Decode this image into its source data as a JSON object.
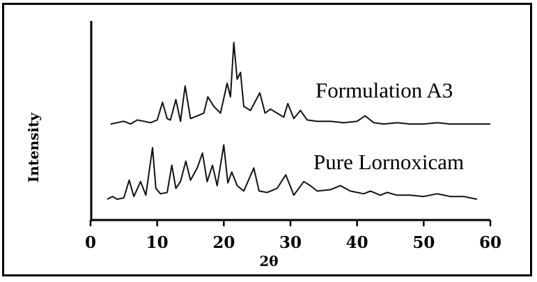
{
  "chart_data": {
    "type": "line",
    "title": "",
    "xlabel": "2θ",
    "ylabel": "Intensity",
    "xlim": [
      0,
      60
    ],
    "xticks": [
      "0",
      "10",
      "20",
      "30",
      "40",
      "50",
      "60"
    ],
    "grid": false,
    "legend": "inline labels above each trace",
    "series": [
      {
        "name": "Formulation A3",
        "x": [
          3,
          4,
          5,
          6,
          7,
          8,
          9,
          10,
          10.8,
          11.5,
          12,
          12.8,
          13.5,
          14.2,
          15,
          16,
          17,
          17.6,
          18.5,
          19.5,
          20.5,
          21,
          21.5,
          22,
          22.5,
          23,
          24,
          25.4,
          26.2,
          27,
          28,
          29,
          29.6,
          30.5,
          31.5,
          32.5,
          34,
          36,
          38,
          40,
          41.2,
          42.5,
          44,
          46,
          48,
          50,
          52,
          54,
          56,
          58,
          60
        ],
        "y": [
          0.02,
          0.03,
          0.04,
          0.02,
          0.05,
          0.04,
          0.03,
          0.05,
          0.18,
          0.06,
          0.05,
          0.2,
          0.04,
          0.3,
          0.06,
          0.08,
          0.1,
          0.22,
          0.15,
          0.1,
          0.32,
          0.22,
          0.62,
          0.35,
          0.4,
          0.15,
          0.12,
          0.25,
          0.1,
          0.13,
          0.1,
          0.07,
          0.17,
          0.06,
          0.12,
          0.05,
          0.04,
          0.04,
          0.03,
          0.04,
          0.08,
          0.03,
          0.02,
          0.03,
          0.02,
          0.02,
          0.03,
          0.02,
          0.02,
          0.02,
          0.02
        ]
      },
      {
        "name": "Pure Lornoxicam",
        "x": [
          2.5,
          3.3,
          4,
          5,
          5.8,
          6.5,
          7.5,
          8.3,
          9.3,
          9.8,
          10.5,
          11.5,
          12.2,
          12.8,
          13.5,
          14.3,
          15,
          16,
          16.8,
          17.5,
          18.3,
          19,
          20,
          20.6,
          21.2,
          22,
          23,
          24.5,
          25.3,
          26.5,
          28,
          29.3,
          30.5,
          32,
          33,
          34,
          36,
          37.5,
          39,
          41,
          42,
          43.5,
          44.5,
          46,
          48,
          50,
          52,
          54,
          56,
          58
        ],
        "y": [
          0.02,
          0.04,
          0.02,
          0.03,
          0.16,
          0.04,
          0.15,
          0.05,
          0.4,
          0.1,
          0.06,
          0.07,
          0.27,
          0.1,
          0.15,
          0.3,
          0.16,
          0.25,
          0.36,
          0.15,
          0.27,
          0.12,
          0.42,
          0.14,
          0.22,
          0.12,
          0.08,
          0.25,
          0.08,
          0.07,
          0.1,
          0.2,
          0.05,
          0.15,
          0.12,
          0.08,
          0.09,
          0.12,
          0.08,
          0.06,
          0.08,
          0.05,
          0.07,
          0.05,
          0.05,
          0.04,
          0.06,
          0.04,
          0.04,
          0.02
        ]
      }
    ]
  }
}
